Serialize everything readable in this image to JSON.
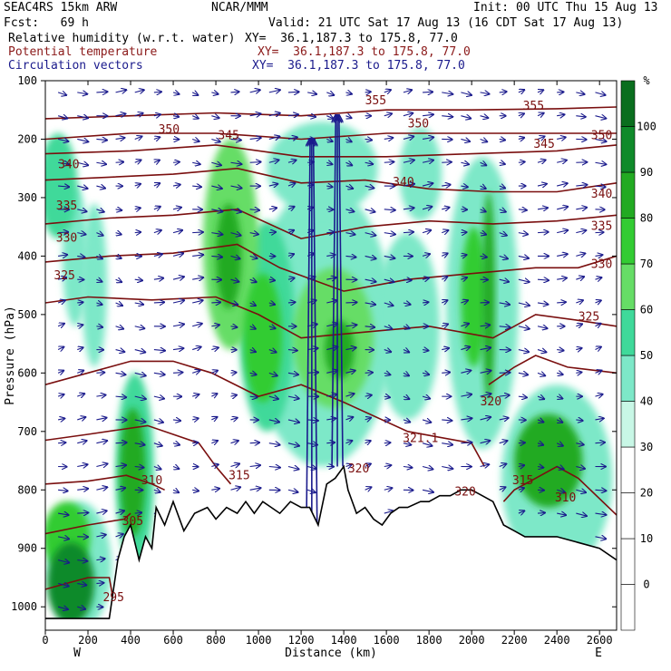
{
  "header": {
    "model": "SEAC4RS 15km ARW",
    "org": "NCAR/MMM",
    "init": "Init: 00 UTC Thu 15 Aug 13",
    "fcst": "Fcst:   69 h",
    "valid": "Valid: 21 UTC Sat 17 Aug 13 (16 CDT Sat 17 Aug 13)",
    "fields": [
      {
        "name": "Relative humidity (w.r.t. water)",
        "xy": "XY=  36.1,187.3 to 175.8, 77.0",
        "color": "#000000"
      },
      {
        "name": "Potential temperature",
        "xy": "XY=  36.1,187.3 to 175.8, 77.0",
        "color": "#8b1a1a"
      },
      {
        "name": "Circulation vectors",
        "xy": "XY=  36.1,187.3 to 175.8, 77.0",
        "color": "#1a1a8c"
      }
    ]
  },
  "colors": {
    "theta": "#7a0f0f",
    "vectors": "#1a1a8c",
    "terrain": "#000000"
  },
  "chart_data": {
    "type": "heatmap",
    "xlabel": "Distance (km)",
    "ylabel": "Pressure (hPa)",
    "xlim": [
      0,
      2680
    ],
    "ylim": [
      1040,
      100
    ],
    "x_ticks": [
      0,
      200,
      400,
      600,
      800,
      1000,
      1200,
      1400,
      1600,
      1800,
      2000,
      2200,
      2400,
      2600
    ],
    "y_ticks": [
      1000,
      900,
      800,
      700,
      600,
      500,
      400,
      300,
      200,
      100
    ],
    "x_end_labels": {
      "left": "W",
      "right": "E"
    },
    "colorbar": {
      "unit": "%",
      "levels": [
        0,
        10,
        20,
        30,
        40,
        50,
        60,
        70,
        80,
        90,
        100
      ],
      "colors": [
        "#ffffff",
        "#ffffff",
        "#ffffff",
        "#ffffff",
        "#c8f7e6",
        "#7de8c8",
        "#3fd99a",
        "#66dd66",
        "#33cc33",
        "#22aa22",
        "#0f8a2a",
        "#0a6e1e"
      ]
    },
    "rh_cells": [
      {
        "x": 120,
        "p": 960,
        "rx": 110,
        "ry": 70,
        "value": 95
      },
      {
        "x": 100,
        "p": 880,
        "rx": 110,
        "ry": 60,
        "value": 70
      },
      {
        "x": 160,
        "p": 930,
        "rx": 150,
        "ry": 110,
        "value": 45
      },
      {
        "x": 410,
        "p": 770,
        "rx": 60,
        "ry": 110,
        "value": 85
      },
      {
        "x": 420,
        "p": 770,
        "rx": 90,
        "ry": 170,
        "value": 55
      },
      {
        "x": 60,
        "p": 280,
        "rx": 90,
        "ry": 90,
        "value": 55
      },
      {
        "x": 140,
        "p": 400,
        "rx": 60,
        "ry": 120,
        "value": 45
      },
      {
        "x": 230,
        "p": 450,
        "rx": 60,
        "ry": 140,
        "value": 42
      },
      {
        "x": 870,
        "p": 380,
        "rx": 130,
        "ry": 180,
        "value": 65
      },
      {
        "x": 860,
        "p": 400,
        "rx": 60,
        "ry": 90,
        "value": 85
      },
      {
        "x": 1020,
        "p": 540,
        "rx": 90,
        "ry": 110,
        "value": 75
      },
      {
        "x": 1040,
        "p": 520,
        "rx": 130,
        "ry": 180,
        "value": 50
      },
      {
        "x": 1350,
        "p": 540,
        "rx": 190,
        "ry": 120,
        "value": 68
      },
      {
        "x": 1380,
        "p": 560,
        "rx": 70,
        "ry": 50,
        "value": 88
      },
      {
        "x": 1300,
        "p": 250,
        "rx": 260,
        "ry": 80,
        "value": 45
      },
      {
        "x": 1300,
        "p": 520,
        "rx": 330,
        "ry": 240,
        "value": 42
      },
      {
        "x": 1760,
        "p": 260,
        "rx": 100,
        "ry": 80,
        "value": 48
      },
      {
        "x": 1700,
        "p": 520,
        "rx": 150,
        "ry": 160,
        "value": 45
      },
      {
        "x": 2010,
        "p": 470,
        "rx": 60,
        "ry": 120,
        "value": 70
      },
      {
        "x": 2080,
        "p": 470,
        "rx": 30,
        "ry": 180,
        "value": 80
      },
      {
        "x": 2050,
        "p": 480,
        "rx": 170,
        "ry": 250,
        "value": 45
      },
      {
        "x": 2360,
        "p": 750,
        "rx": 160,
        "ry": 80,
        "value": 85
      },
      {
        "x": 2400,
        "p": 780,
        "rx": 260,
        "ry": 160,
        "value": 48
      }
    ],
    "theta_labels": [
      {
        "value": "350",
        "x": 580,
        "p": 190
      },
      {
        "value": "345",
        "x": 860,
        "p": 200
      },
      {
        "value": "340",
        "x": 110,
        "p": 250
      },
      {
        "value": "335",
        "x": 100,
        "p": 320
      },
      {
        "value": "330",
        "x": 100,
        "p": 375
      },
      {
        "value": "325",
        "x": 90,
        "p": 440
      },
      {
        "value": "355",
        "x": 1550,
        "p": 140
      },
      {
        "value": "350",
        "x": 1750,
        "p": 180
      },
      {
        "value": "355",
        "x": 2290,
        "p": 150
      },
      {
        "value": "345",
        "x": 2340,
        "p": 215
      },
      {
        "value": "350",
        "x": 2610,
        "p": 200
      },
      {
        "value": "340",
        "x": 1680,
        "p": 280
      },
      {
        "value": "340",
        "x": 2610,
        "p": 300
      },
      {
        "value": "335",
        "x": 2610,
        "p": 355
      },
      {
        "value": "330",
        "x": 2610,
        "p": 420
      },
      {
        "value": "325",
        "x": 2550,
        "p": 510
      },
      {
        "value": "320",
        "x": 2090,
        "p": 655
      },
      {
        "value": "321.1",
        "x": 1760,
        "p": 718
      },
      {
        "value": "320",
        "x": 1470,
        "p": 770
      },
      {
        "value": "320",
        "x": 1970,
        "p": 810
      },
      {
        "value": "315",
        "x": 2240,
        "p": 790
      },
      {
        "value": "310",
        "x": 2440,
        "p": 820
      },
      {
        "value": "315",
        "x": 910,
        "p": 782
      },
      {
        "value": "310",
        "x": 500,
        "p": 790
      },
      {
        "value": "305",
        "x": 410,
        "p": 860
      },
      {
        "value": "295",
        "x": 320,
        "p": 990
      }
    ],
    "theta_contours": [
      {
        "value": 295,
        "points": [
          [
            0,
            970
          ],
          [
            100,
            960
          ],
          [
            200,
            950
          ],
          [
            300,
            950
          ],
          [
            330,
            1010
          ]
        ]
      },
      {
        "value": 305,
        "points": [
          [
            0,
            875
          ],
          [
            200,
            860
          ],
          [
            370,
            850
          ],
          [
            400,
            840
          ]
        ]
      },
      {
        "value": 310,
        "points": [
          [
            0,
            790
          ],
          [
            200,
            785
          ],
          [
            380,
            775
          ],
          [
            500,
            790
          ],
          [
            560,
            800
          ]
        ]
      },
      {
        "value": 315,
        "points": [
          [
            0,
            715
          ],
          [
            200,
            705
          ],
          [
            480,
            690
          ],
          [
            720,
            720
          ],
          [
            800,
            760
          ],
          [
            870,
            790
          ]
        ]
      },
      {
        "value": 320,
        "points": [
          [
            0,
            620
          ],
          [
            200,
            600
          ],
          [
            400,
            580
          ],
          [
            600,
            580
          ],
          [
            780,
            600
          ],
          [
            1000,
            640
          ],
          [
            1200,
            620
          ],
          [
            1400,
            650
          ],
          [
            1700,
            700
          ],
          [
            2000,
            720
          ],
          [
            2060,
            760
          ]
        ]
      },
      {
        "value": 320,
        "points": [
          [
            2700,
            850
          ],
          [
            2500,
            780
          ],
          [
            2400,
            760
          ],
          [
            2300,
            780
          ],
          [
            2200,
            800
          ],
          [
            2150,
            820
          ]
        ]
      },
      {
        "value": 320,
        "points": [
          [
            2080,
            620
          ],
          [
            2200,
            590
          ],
          [
            2300,
            570
          ],
          [
            2450,
            590
          ],
          [
            2680,
            600
          ]
        ]
      },
      {
        "value": 325,
        "points": [
          [
            0,
            480
          ],
          [
            200,
            470
          ],
          [
            500,
            475
          ],
          [
            800,
            470
          ],
          [
            1000,
            500
          ],
          [
            1200,
            540
          ],
          [
            1500,
            530
          ],
          [
            1800,
            520
          ],
          [
            2100,
            540
          ],
          [
            2300,
            500
          ],
          [
            2500,
            510
          ],
          [
            2680,
            520
          ]
        ]
      },
      {
        "value": 330,
        "points": [
          [
            0,
            410
          ],
          [
            300,
            400
          ],
          [
            600,
            395
          ],
          [
            900,
            380
          ],
          [
            1100,
            420
          ],
          [
            1400,
            460
          ],
          [
            1700,
            440
          ],
          [
            2000,
            430
          ],
          [
            2300,
            420
          ],
          [
            2500,
            420
          ],
          [
            2680,
            400
          ]
        ]
      },
      {
        "value": 335,
        "points": [
          [
            0,
            345
          ],
          [
            300,
            335
          ],
          [
            600,
            330
          ],
          [
            900,
            320
          ],
          [
            1200,
            370
          ],
          [
            1500,
            350
          ],
          [
            1800,
            340
          ],
          [
            2100,
            345
          ],
          [
            2400,
            340
          ],
          [
            2680,
            330
          ]
        ]
      },
      {
        "value": 340,
        "points": [
          [
            0,
            270
          ],
          [
            300,
            265
          ],
          [
            600,
            260
          ],
          [
            900,
            250
          ],
          [
            1200,
            275
          ],
          [
            1500,
            270
          ],
          [
            1800,
            285
          ],
          [
            2100,
            290
          ],
          [
            2400,
            290
          ],
          [
            2680,
            275
          ]
        ]
      },
      {
        "value": 345,
        "points": [
          [
            0,
            225
          ],
          [
            400,
            220
          ],
          [
            800,
            210
          ],
          [
            1200,
            230
          ],
          [
            1600,
            230
          ],
          [
            2000,
            225
          ],
          [
            2400,
            220
          ],
          [
            2680,
            210
          ]
        ]
      },
      {
        "value": 350,
        "points": [
          [
            0,
            200
          ],
          [
            400,
            190
          ],
          [
            800,
            190
          ],
          [
            1200,
            200
          ],
          [
            1600,
            190
          ],
          [
            2000,
            190
          ],
          [
            2400,
            190
          ],
          [
            2680,
            190
          ]
        ]
      },
      {
        "value": 355,
        "points": [
          [
            0,
            165
          ],
          [
            400,
            160
          ],
          [
            800,
            155
          ],
          [
            1200,
            160
          ],
          [
            1600,
            150
          ],
          [
            2000,
            150
          ],
          [
            2400,
            148
          ],
          [
            2680,
            145
          ]
        ]
      }
    ],
    "terrain": [
      [
        0,
        1020
      ],
      [
        300,
        1020
      ],
      [
        340,
        920
      ],
      [
        370,
        880
      ],
      [
        400,
        860
      ],
      [
        440,
        920
      ],
      [
        470,
        880
      ],
      [
        500,
        900
      ],
      [
        520,
        830
      ],
      [
        560,
        860
      ],
      [
        600,
        820
      ],
      [
        650,
        870
      ],
      [
        700,
        840
      ],
      [
        760,
        830
      ],
      [
        800,
        850
      ],
      [
        850,
        830
      ],
      [
        900,
        840
      ],
      [
        940,
        820
      ],
      [
        980,
        840
      ],
      [
        1020,
        820
      ],
      [
        1060,
        830
      ],
      [
        1100,
        840
      ],
      [
        1150,
        820
      ],
      [
        1200,
        830
      ],
      [
        1240,
        830
      ],
      [
        1280,
        860
      ],
      [
        1320,
        790
      ],
      [
        1360,
        780
      ],
      [
        1400,
        760
      ],
      [
        1420,
        800
      ],
      [
        1460,
        840
      ],
      [
        1500,
        830
      ],
      [
        1540,
        850
      ],
      [
        1580,
        860
      ],
      [
        1620,
        840
      ],
      [
        1660,
        830
      ],
      [
        1700,
        830
      ],
      [
        1760,
        820
      ],
      [
        1800,
        820
      ],
      [
        1850,
        810
      ],
      [
        1900,
        810
      ],
      [
        1950,
        800
      ],
      [
        2000,
        800
      ],
      [
        2050,
        810
      ],
      [
        2100,
        820
      ],
      [
        2150,
        860
      ],
      [
        2200,
        870
      ],
      [
        2250,
        880
      ],
      [
        2300,
        880
      ],
      [
        2400,
        880
      ],
      [
        2500,
        890
      ],
      [
        2600,
        900
      ],
      [
        2680,
        920
      ]
    ],
    "strong_updrafts": [
      {
        "x": 1250,
        "p_bottom": 880,
        "p_top": 200
      },
      {
        "x": 1370,
        "p_bottom": 760,
        "p_top": 160
      }
    ]
  }
}
